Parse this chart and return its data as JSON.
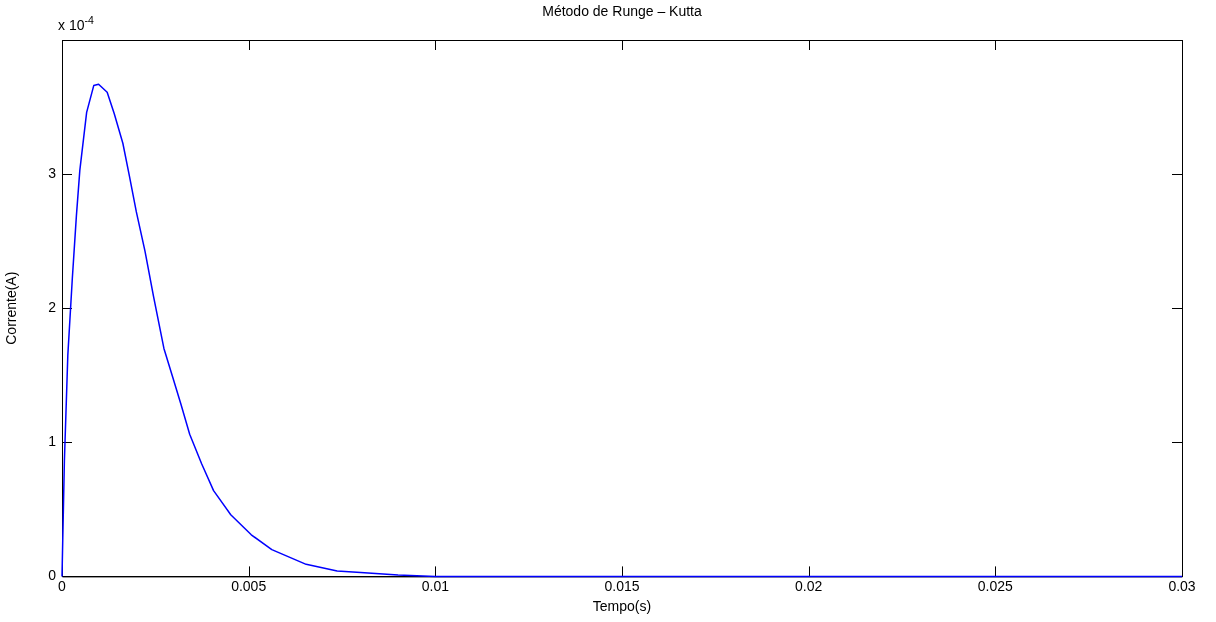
{
  "chart_data": {
    "type": "line",
    "title": "Método de Runge – Kutta",
    "xlabel": "Tempo(s)",
    "ylabel": "Corrente(A)",
    "annotations": [
      "x 10$^{-4}$"
    ],
    "x": [
      0,
      6.4e-05,
      0.000156,
      0.000276,
      0.000386,
      0.000478,
      0.00066,
      0.00085,
      0.00098,
      0.00121,
      0.0014,
      0.00163,
      0.00181,
      0.00199,
      0.00222,
      0.00245,
      0.00273,
      0.00296,
      0.00319,
      0.00342,
      0.00374,
      0.00406,
      0.00452,
      0.00507,
      0.00562,
      0.00654,
      0.00737,
      0.008,
      0.009,
      0.01,
      0.015,
      0.02,
      0.025,
      0.03
    ],
    "series": [
      {
        "color": "#0000ff",
        "values": [
          0,
          0.86,
          1.65,
          2.22,
          2.69,
          3.03,
          3.46,
          3.66,
          3.67,
          3.61,
          3.45,
          3.23,
          2.98,
          2.72,
          2.43,
          2.09,
          1.7,
          1.49,
          1.28,
          1.06,
          0.84,
          0.64,
          0.46,
          0.31,
          0.2,
          0.09,
          0.04,
          0.03,
          0.01,
          0,
          0,
          0,
          0,
          0
        ]
      }
    ],
    "xlim": [
      0,
      0.03
    ],
    "xticks": [
      0,
      0.005,
      0.01,
      0.015,
      0.02,
      0.025,
      0.03
    ],
    "ylim": [
      0,
      4
    ],
    "yticks": [
      0,
      1,
      2,
      3
    ],
    "grid": false,
    "legend": false,
    "marker": "none",
    "line_style": "solid"
  }
}
